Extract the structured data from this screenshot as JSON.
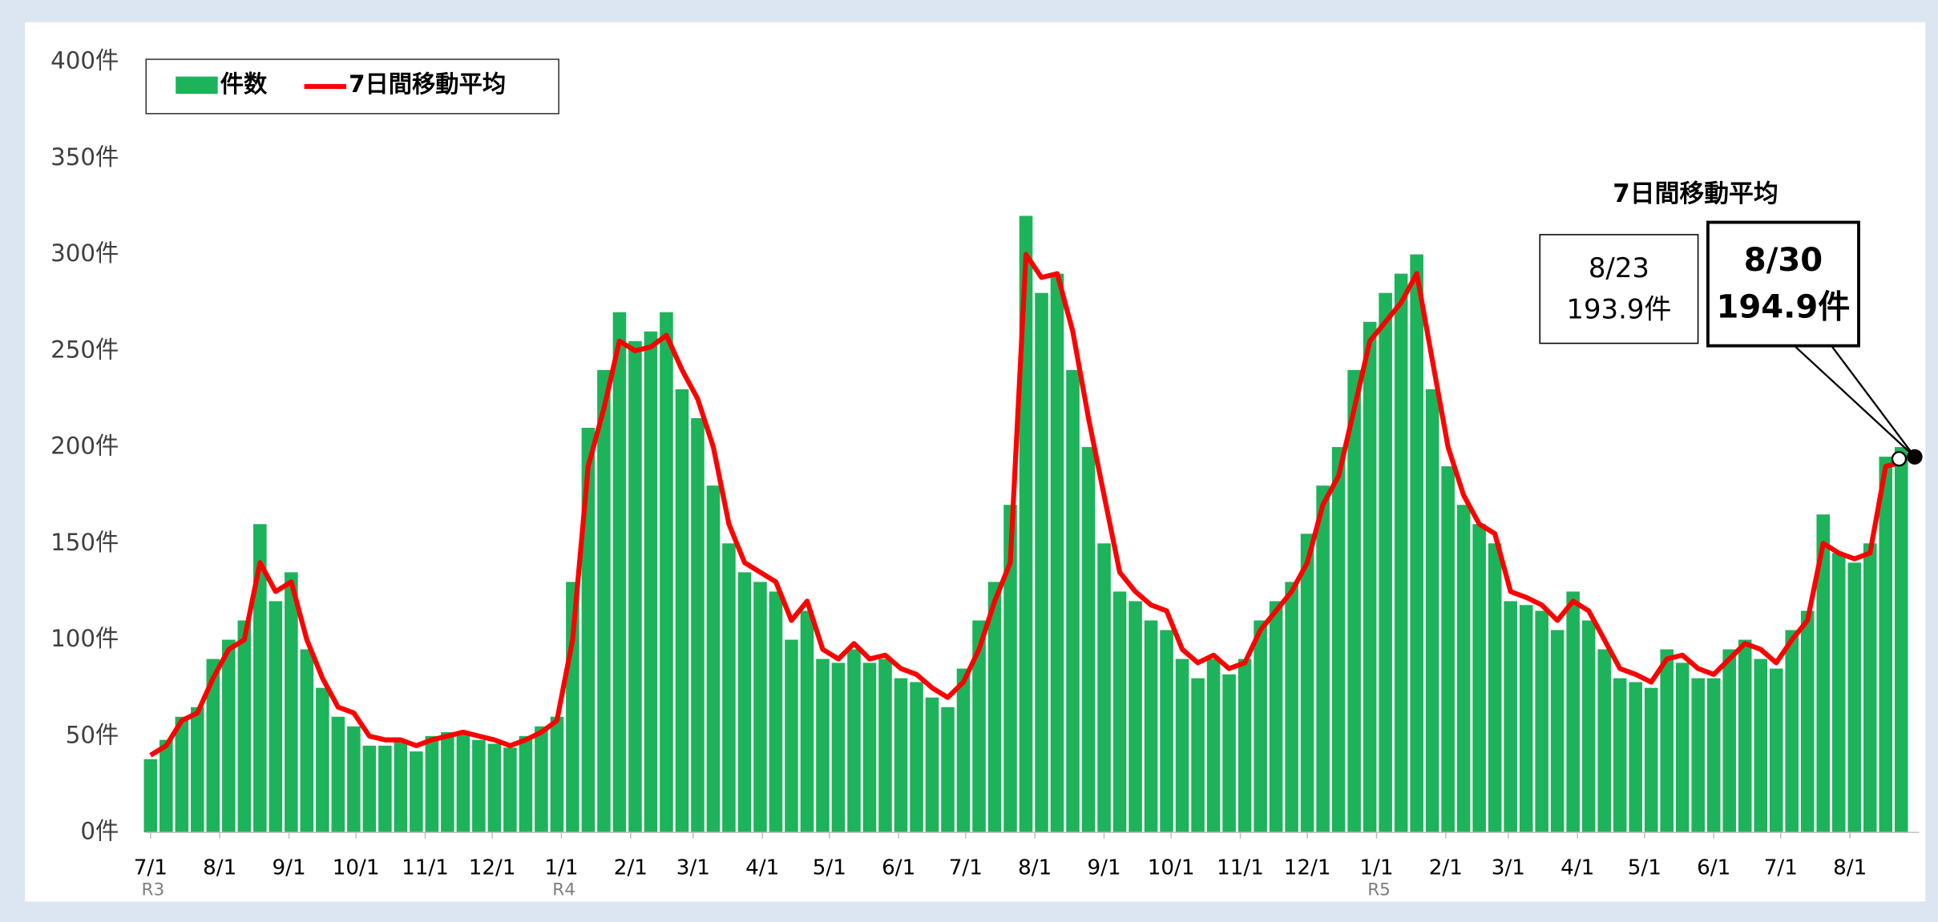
{
  "chart_data": {
    "type": "bar-line",
    "xlim": [
      -2,
      792
    ],
    "ylim": [
      0,
      400
    ],
    "yticks": [
      {
        "value": 0,
        "label": "0件"
      },
      {
        "value": 50,
        "label": "50件"
      },
      {
        "value": 100,
        "label": "100件"
      },
      {
        "value": 150,
        "label": "150件"
      },
      {
        "value": 200,
        "label": "200件"
      },
      {
        "value": 250,
        "label": "250件"
      },
      {
        "value": 300,
        "label": "300件"
      },
      {
        "value": 350,
        "label": "350件"
      },
      {
        "value": 400,
        "label": "400件"
      }
    ],
    "xticks": [
      {
        "value": 0,
        "label": "7/1"
      },
      {
        "value": 31,
        "label": "8/1"
      },
      {
        "value": 62,
        "label": "9/1"
      },
      {
        "value": 92,
        "label": "10/1"
      },
      {
        "value": 123,
        "label": "11/1"
      },
      {
        "value": 153,
        "label": "12/1"
      },
      {
        "value": 184,
        "label": "1/1"
      },
      {
        "value": 215,
        "label": "2/1"
      },
      {
        "value": 243,
        "label": "3/1"
      },
      {
        "value": 274,
        "label": "4/1"
      },
      {
        "value": 304,
        "label": "5/1"
      },
      {
        "value": 335,
        "label": "6/1"
      },
      {
        "value": 365,
        "label": "7/1"
      },
      {
        "value": 396,
        "label": "8/1"
      },
      {
        "value": 427,
        "label": "9/1"
      },
      {
        "value": 457,
        "label": "10/1"
      },
      {
        "value": 488,
        "label": "11/1"
      },
      {
        "value": 518,
        "label": "12/1"
      },
      {
        "value": 549,
        "label": "1/1"
      },
      {
        "value": 580,
        "label": "2/1"
      },
      {
        "value": 608,
        "label": "3/1"
      },
      {
        "value": 639,
        "label": "4/1"
      },
      {
        "value": 669,
        "label": "5/1"
      },
      {
        "value": 700,
        "label": "6/1"
      },
      {
        "value": 730,
        "label": "7/1"
      },
      {
        "value": 761,
        "label": "8/1"
      }
    ],
    "era_labels": [
      {
        "value": 0,
        "label": "R3"
      },
      {
        "value": 184,
        "label": "R4"
      },
      {
        "value": 549,
        "label": "R5"
      }
    ],
    "grid": true,
    "x": [
      0,
      7,
      14,
      21,
      28,
      35,
      42,
      49,
      56,
      63,
      70,
      77,
      84,
      91,
      98,
      105,
      112,
      119,
      126,
      133,
      140,
      147,
      154,
      161,
      168,
      175,
      182,
      189,
      196,
      203,
      210,
      217,
      224,
      231,
      238,
      245,
      252,
      259,
      266,
      273,
      280,
      287,
      294,
      301,
      308,
      315,
      322,
      329,
      336,
      343,
      350,
      357,
      364,
      371,
      378,
      385,
      392,
      399,
      406,
      413,
      420,
      427,
      434,
      441,
      448,
      455,
      462,
      469,
      476,
      483,
      490,
      497,
      504,
      511,
      518,
      525,
      532,
      539,
      546,
      553,
      560,
      567,
      574,
      581,
      588,
      595,
      602,
      609,
      616,
      623,
      630,
      637,
      644,
      651,
      658,
      665,
      672,
      679,
      686,
      693,
      700,
      707,
      714,
      721,
      728,
      735,
      742,
      749,
      756,
      763,
      770,
      777,
      784
    ],
    "series": [
      {
        "name": "件数",
        "color": "#1db35a",
        "kind": "bar",
        "values": [
          38,
          48,
          60,
          65,
          90,
          100,
          110,
          160,
          120,
          135,
          95,
          75,
          60,
          55,
          45,
          45,
          48,
          42,
          50,
          52,
          52,
          48,
          46,
          44,
          50,
          55,
          60,
          130,
          210,
          240,
          270,
          255,
          260,
          270,
          230,
          215,
          180,
          150,
          135,
          130,
          125,
          100,
          115,
          90,
          88,
          95,
          88,
          90,
          80,
          78,
          70,
          65,
          85,
          110,
          130,
          170,
          320,
          280,
          290,
          240,
          200,
          150,
          125,
          120,
          110,
          105,
          90,
          80,
          90,
          82,
          90,
          110,
          120,
          130,
          155,
          180,
          200,
          240,
          265,
          280,
          290,
          300,
          230,
          190,
          170,
          160,
          150,
          120,
          118,
          115,
          105,
          125,
          110,
          95,
          80,
          78,
          75,
          95,
          88,
          80,
          80,
          95,
          100,
          90,
          85,
          105,
          115,
          165,
          145,
          140,
          150,
          195,
          200
        ]
      },
      {
        "name": "7日間移動平均",
        "color": "#ff0000",
        "kind": "line",
        "values": [
          40,
          45,
          58,
          62,
          80,
          95,
          100,
          140,
          125,
          130,
          100,
          80,
          65,
          62,
          50,
          48,
          48,
          45,
          48,
          50,
          52,
          50,
          48,
          45,
          48,
          52,
          58,
          100,
          190,
          220,
          255,
          250,
          252,
          258,
          240,
          225,
          200,
          160,
          140,
          135,
          130,
          110,
          120,
          95,
          90,
          98,
          90,
          92,
          85,
          82,
          75,
          70,
          78,
          95,
          120,
          140,
          300,
          288,
          290,
          260,
          215,
          175,
          135,
          125,
          118,
          115,
          95,
          88,
          92,
          85,
          88,
          105,
          115,
          125,
          140,
          170,
          185,
          220,
          255,
          265,
          275,
          290,
          245,
          200,
          175,
          160,
          155,
          125,
          122,
          118,
          110,
          120,
          115,
          100,
          85,
          82,
          78,
          90,
          92,
          85,
          82,
          90,
          98,
          95,
          88,
          100,
          110,
          150,
          145,
          142,
          145,
          190,
          192
        ]
      }
    ],
    "annotation_title": "7日間移動平均",
    "annotations": [
      {
        "date": "8/23",
        "x": 783,
        "value": 193.9,
        "label": "193.9件"
      },
      {
        "date": "8/30",
        "x": 790,
        "value": 194.9,
        "label": "194.9件"
      }
    ]
  }
}
